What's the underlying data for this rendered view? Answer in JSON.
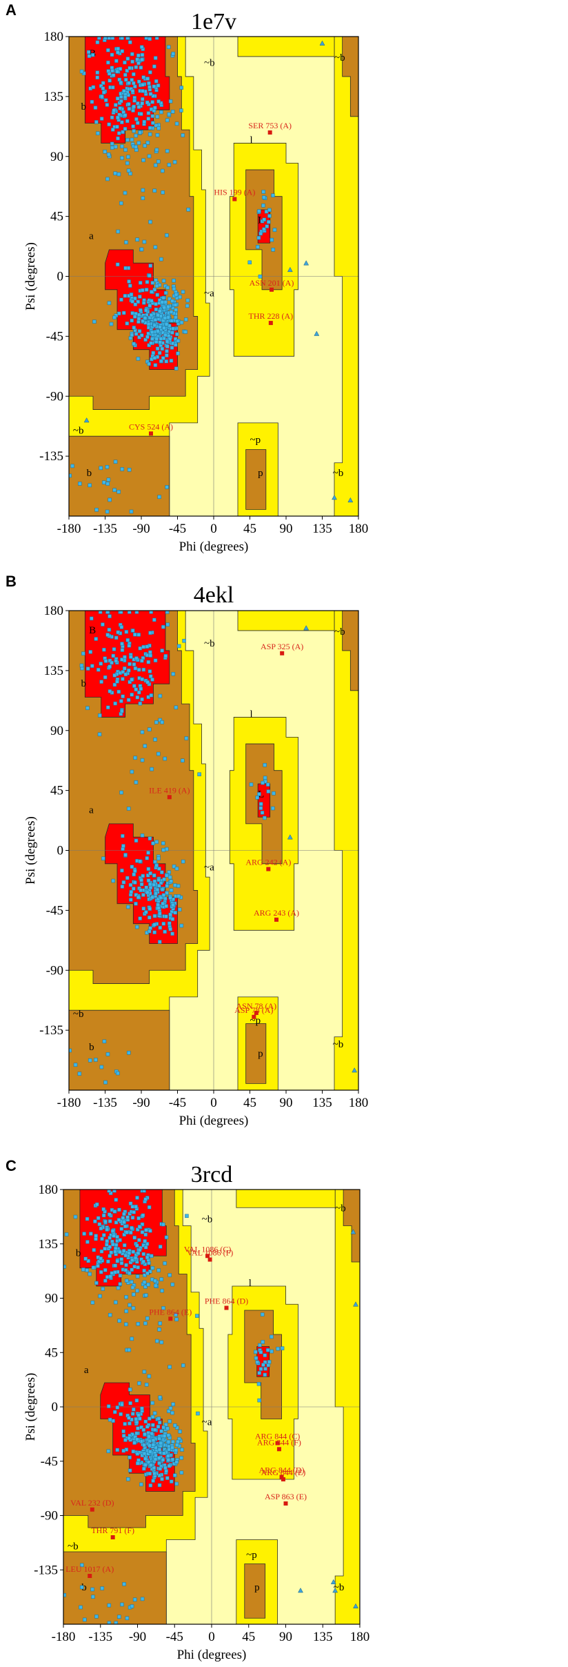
{
  "chart_data": [
    {
      "type": "scatter",
      "panel": "A",
      "title": "1e7v",
      "xlabel": "Phi (degrees)",
      "ylabel": "Psi (degrees)",
      "xlim": [
        -180,
        180
      ],
      "ylim": [
        -180,
        180
      ],
      "xticks": [
        "-180",
        "-135",
        "-90",
        "-45",
        "0",
        "45",
        "90",
        "135",
        "180"
      ],
      "yticks": [
        "180",
        "135",
        "90",
        "45",
        "0",
        "-45",
        "-90",
        "-135"
      ],
      "region_labels": [
        {
          "text": "B",
          "x": -155,
          "y": 165
        },
        {
          "text": "b",
          "x": -165,
          "y": 125
        },
        {
          "text": "a",
          "x": -155,
          "y": 28
        },
        {
          "text": "~a",
          "x": -12,
          "y": -15
        },
        {
          "text": "~b",
          "x": -12,
          "y": 158
        },
        {
          "text": "~b",
          "x": -175,
          "y": -118
        },
        {
          "text": "b",
          "x": -158,
          "y": -150
        },
        {
          "text": "l",
          "x": 45,
          "y": 100
        },
        {
          "text": "L",
          "x": 55,
          "y": 40
        },
        {
          "text": "~p",
          "x": 45,
          "y": -125
        },
        {
          "text": "p",
          "x": 55,
          "y": -150
        },
        {
          "text": "~b",
          "x": 150,
          "y": 162
        },
        {
          "text": "~b",
          "x": 148,
          "y": -150
        }
      ],
      "outliers": [
        {
          "label": "SER 753 (A)",
          "phi": 70,
          "psi": 108
        },
        {
          "label": "HIS 199 (A)",
          "phi": 26,
          "psi": 58
        },
        {
          "label": "ASN 201 (A)",
          "phi": 72,
          "psi": -10
        },
        {
          "label": "THR 228 (A)",
          "phi": 71,
          "psi": -35
        },
        {
          "label": "CYS 524 (A)",
          "phi": -78,
          "psi": -118
        }
      ],
      "triangles": [
        {
          "phi": -158,
          "psi": -108
        },
        {
          "phi": 128,
          "psi": -43
        },
        {
          "phi": 150,
          "psi": -166
        },
        {
          "phi": 170,
          "psi": -168
        },
        {
          "phi": 95,
          "psi": 5
        },
        {
          "phi": 115,
          "psi": 10
        },
        {
          "phi": 135,
          "psi": 175
        }
      ]
    },
    {
      "type": "scatter",
      "panel": "B",
      "title": "4ekl",
      "xlabel": "Phi (degrees)",
      "ylabel": "Psi (degrees)",
      "xlim": [
        -180,
        180
      ],
      "ylim": [
        -180,
        180
      ],
      "xticks": [
        "-180",
        "-135",
        "-90",
        "-45",
        "0",
        "45",
        "90",
        "135",
        "180"
      ],
      "yticks": [
        "180",
        "135",
        "90",
        "45",
        "0",
        "-45",
        "-90",
        "-135"
      ],
      "region_labels": [
        {
          "text": "B",
          "x": -155,
          "y": 163
        },
        {
          "text": "b",
          "x": -165,
          "y": 123
        },
        {
          "text": "a",
          "x": -155,
          "y": 28
        },
        {
          "text": "~a",
          "x": -12,
          "y": -15
        },
        {
          "text": "~b",
          "x": -12,
          "y": 153
        },
        {
          "text": "~b",
          "x": -175,
          "y": -125
        },
        {
          "text": "b",
          "x": -155,
          "y": -150
        },
        {
          "text": "l",
          "x": 45,
          "y": 100
        },
        {
          "text": "L",
          "x": 55,
          "y": 40
        },
        {
          "text": "~p",
          "x": 45,
          "y": -130
        },
        {
          "text": "p",
          "x": 55,
          "y": -155
        },
        {
          "text": "~b",
          "x": 150,
          "y": 162
        },
        {
          "text": "~b",
          "x": 148,
          "y": -148
        }
      ],
      "outliers": [
        {
          "label": "ASP 325 (A)",
          "phi": 85,
          "psi": 148
        },
        {
          "label": "ILE 419 (A)",
          "phi": -55,
          "psi": 40
        },
        {
          "label": "ARG 242 (A)",
          "phi": 68,
          "psi": -14
        },
        {
          "label": "ARG 243 (A)",
          "phi": 78,
          "psi": -52
        },
        {
          "label": "ASP 78 (A)",
          "phi": 50,
          "psi": -125
        },
        {
          "label": "ASN 78 (A)",
          "phi": 53,
          "psi": -122
        }
      ],
      "triangles": [
        {
          "phi": 115,
          "psi": 167
        },
        {
          "phi": 175,
          "psi": -165
        },
        {
          "phi": 95,
          "psi": 10
        }
      ]
    },
    {
      "type": "scatter",
      "panel": "C",
      "title": "3rcd",
      "xlabel": "Phi (degrees)",
      "ylabel": "Psi (degrees)",
      "xlim": [
        -180,
        180
      ],
      "ylim": [
        -180,
        180
      ],
      "xticks": [
        "-180",
        "-135",
        "-90",
        "-45",
        "0",
        "45",
        "90",
        "135",
        "180"
      ],
      "yticks": [
        "180",
        "135",
        "90",
        "45",
        "0",
        "-45",
        "-90",
        "-135"
      ],
      "region_labels": [
        {
          "text": "b",
          "x": -165,
          "y": 125
        },
        {
          "text": "a",
          "x": -155,
          "y": 28
        },
        {
          "text": "~a",
          "x": -12,
          "y": -15
        },
        {
          "text": "~b",
          "x": -12,
          "y": 153
        },
        {
          "text": "~b",
          "x": -175,
          "y": -118
        },
        {
          "text": "b",
          "x": -158,
          "y": -152
        },
        {
          "text": "l",
          "x": 45,
          "y": 100
        },
        {
          "text": "~p",
          "x": 42,
          "y": -125
        },
        {
          "text": "p",
          "x": 52,
          "y": -152
        },
        {
          "text": "~b",
          "x": 150,
          "y": 162
        },
        {
          "text": "~b",
          "x": 148,
          "y": -152
        }
      ],
      "outliers": [
        {
          "label": "VAL 1086 (C)",
          "phi": -5,
          "psi": 125
        },
        {
          "label": "VAL 1086 (F)",
          "phi": -2,
          "psi": 122
        },
        {
          "label": "PHE 864 (D)",
          "phi": 18,
          "psi": 82
        },
        {
          "label": "PHE 864 (E)",
          "phi": -50,
          "psi": 73
        },
        {
          "label": "ARG 844 (C)",
          "phi": 80,
          "psi": -30
        },
        {
          "label": "ARG 844 (F)",
          "phi": 82,
          "psi": -35
        },
        {
          "label": "ARG 844 (D)",
          "phi": 85,
          "psi": -58
        },
        {
          "label": "ARG 844 (E)",
          "phi": 87,
          "psi": -60
        },
        {
          "label": "ASP 863 (E)",
          "phi": 90,
          "psi": -80
        },
        {
          "label": "VAL 232 (D)",
          "phi": -145,
          "psi": -85
        },
        {
          "label": "THR 791 (F)",
          "phi": -120,
          "psi": -108
        },
        {
          "label": "LEU 1017 (A)",
          "phi": -148,
          "psi": -140
        }
      ],
      "triangles": [
        {
          "phi": 148,
          "psi": -145
        },
        {
          "phi": 175,
          "psi": -165
        },
        {
          "phi": 108,
          "psi": -152
        },
        {
          "phi": 150,
          "psi": -152
        },
        {
          "phi": 175,
          "psi": 85
        },
        {
          "phi": 172,
          "psi": 145
        }
      ]
    }
  ]
}
